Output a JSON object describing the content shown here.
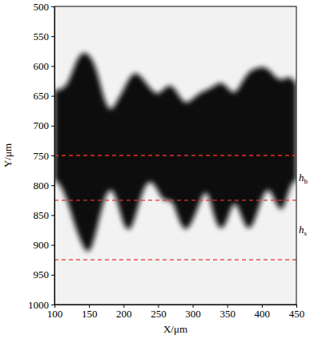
{
  "chart_data": {
    "type": "area",
    "xlabel": "X/μm",
    "ylabel": "Y/μm",
    "x": [
      100,
      110,
      120,
      130,
      140,
      150,
      160,
      170,
      180,
      190,
      200,
      210,
      220,
      230,
      240,
      250,
      260,
      270,
      280,
      290,
      300,
      310,
      320,
      330,
      340,
      350,
      360,
      370,
      380,
      390,
      400,
      410,
      420,
      430,
      440,
      450
    ],
    "series": [
      {
        "color": "#111111",
        "values": [
          640,
          640,
          630,
          595,
          575,
          580,
          600,
          650,
          680,
          660,
          640,
          615,
          610,
          625,
          640,
          650,
          635,
          630,
          650,
          665,
          655,
          645,
          640,
          635,
          625,
          635,
          650,
          630,
          610,
          605,
          600,
          605,
          620,
          625,
          615,
          630
        ]
      },
      {
        "color": "#111111",
        "values": [
          790,
          800,
          830,
          870,
          900,
          920,
          880,
          830,
          800,
          820,
          870,
          880,
          840,
          800,
          790,
          810,
          830,
          820,
          860,
          880,
          860,
          830,
          800,
          850,
          880,
          860,
          820,
          850,
          880,
          860,
          820,
          800,
          830,
          850,
          800,
          790
        ]
      }
    ],
    "xlim": [
      100,
      450
    ],
    "ylim": [
      500,
      1000
    ],
    "xticks": [
      100,
      150,
      200,
      250,
      300,
      350,
      400,
      450
    ],
    "yticks": [
      500,
      550,
      600,
      650,
      700,
      750,
      800,
      850,
      900,
      950,
      1000
    ],
    "reference_lines": {
      "values": [
        750,
        825,
        925
      ],
      "color": "#e8302a",
      "line_style": "dashed"
    },
    "annotations": [
      {
        "text": "h",
        "subscript": "b"
      },
      {
        "text": "h",
        "subscript": "s"
      }
    ]
  }
}
